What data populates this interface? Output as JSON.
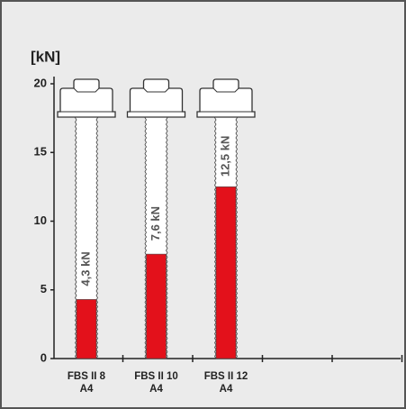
{
  "chart_data": {
    "type": "bar",
    "y_label": "[kN]",
    "categories": [
      "FBS II 8",
      "FBS II 10",
      "FBS II 12"
    ],
    "category_sublabels": [
      "A4",
      "A4",
      "A4"
    ],
    "values": [
      4.3,
      7.6,
      12.5
    ],
    "value_labels": [
      "4,3 kN",
      "7,6 kN",
      "12,5 kN"
    ],
    "color": "#e3111b",
    "ylim": [
      0,
      20
    ],
    "yticks": [
      0,
      5,
      10,
      15,
      20
    ]
  }
}
